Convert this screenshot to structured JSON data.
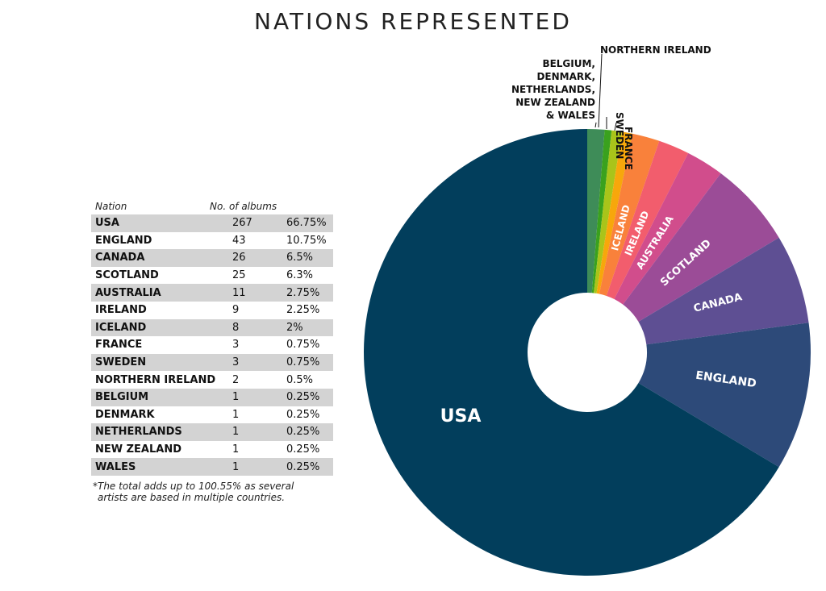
{
  "title": "NATIONS REPRESENTED",
  "table": {
    "header_nation": "Nation",
    "header_albums": "No. of albums",
    "rows": [
      {
        "nation": "USA",
        "albums": "267",
        "percent": "66.75%"
      },
      {
        "nation": "ENGLAND",
        "albums": "43",
        "percent": "10.75%"
      },
      {
        "nation": "CANADA",
        "albums": "26",
        "percent": "6.5%"
      },
      {
        "nation": "SCOTLAND",
        "albums": "25",
        "percent": "6.3%"
      },
      {
        "nation": "AUSTRALIA",
        "albums": "11",
        "percent": "2.75%"
      },
      {
        "nation": "IRELAND",
        "albums": "9",
        "percent": "2.25%"
      },
      {
        "nation": "ICELAND",
        "albums": "8",
        "percent": "2%"
      },
      {
        "nation": "FRANCE",
        "albums": "3",
        "percent": "0.75%"
      },
      {
        "nation": "SWEDEN",
        "albums": "3",
        "percent": "0.75%"
      },
      {
        "nation": "NORTHERN IRELAND",
        "albums": "2",
        "percent": "0.5%"
      },
      {
        "nation": "BELGIUM",
        "albums": "1",
        "percent": "0.25%"
      },
      {
        "nation": "DENMARK",
        "albums": "1",
        "percent": "0.25%"
      },
      {
        "nation": "NETHERLANDS",
        "albums": "1",
        "percent": "0.25%"
      },
      {
        "nation": "NEW ZEALAND",
        "albums": "1",
        "percent": "0.25%"
      },
      {
        "nation": "WALES",
        "albums": "1",
        "percent": "0.25%"
      }
    ],
    "footnote_line1": "*The total adds up to 100.55% as several",
    "footnote_line2": "artists are based in multiple countries."
  },
  "chart_data": {
    "type": "pie",
    "donut": true,
    "slices": [
      {
        "label": "USA",
        "value": 267,
        "color": "#023e5c"
      },
      {
        "label": "ENGLAND",
        "value": 43,
        "color": "#2d4a79"
      },
      {
        "label": "CANADA",
        "value": 26,
        "color": "#5e4f93"
      },
      {
        "label": "SCOTLAND",
        "value": 25,
        "color": "#9b4c97"
      },
      {
        "label": "AUSTRALIA",
        "value": 11,
        "color": "#d14d8c"
      },
      {
        "label": "IRELAND",
        "value": 9,
        "color": "#f25d6d"
      },
      {
        "label": "ICELAND",
        "value": 8,
        "color": "#f9813b"
      },
      {
        "label": "FRANCE",
        "value": 3,
        "color": "#f7a70b"
      },
      {
        "label": "SWEDEN",
        "value": 3,
        "color": "#a9c41a"
      },
      {
        "label": "NORTHERN IRELAND",
        "value": 2,
        "color": "#3aa11e"
      },
      {
        "label": "BELGIUM, DENMARK, NETHERLANDS, NEW ZEALAND & WALES",
        "value": 5,
        "color": "#3e8c58"
      }
    ],
    "outside_labels": {
      "northern_ireland": "NORTHERN IRELAND",
      "sweden": "SWEDEN",
      "france": "FRANCE",
      "group_lines": [
        "BELGIUM,",
        "DENMARK,",
        "NETHERLANDS,",
        "NEW ZEALAND",
        "& WALES"
      ]
    }
  }
}
